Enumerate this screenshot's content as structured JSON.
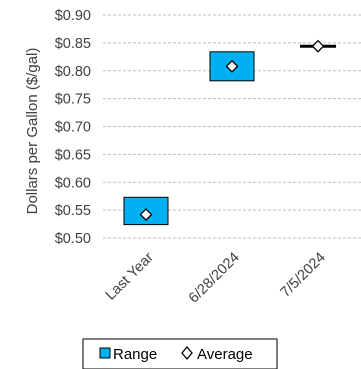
{
  "chart_data": {
    "type": "bar",
    "title": "",
    "xlabel": "",
    "ylabel": "Dollars per Gallon ($/gal)",
    "ylim": [
      0.5,
      0.9
    ],
    "ytick_step": 0.05,
    "yticks": [
      "$0.50",
      "$0.55",
      "$0.60",
      "$0.65",
      "$0.70",
      "$0.75",
      "$0.80",
      "$0.85",
      "$0.90"
    ],
    "grid": true,
    "legend_position": "bottom",
    "categories": [
      "Last Year",
      "6/28/2024",
      "7/5/2024"
    ],
    "series": [
      {
        "name": "Range",
        "kind": "floating-bar",
        "low": [
          0.524,
          0.782,
          0.843
        ],
        "high": [
          0.573,
          0.834,
          0.845
        ],
        "color": "#00B0F0"
      },
      {
        "name": "Average",
        "kind": "marker",
        "values": [
          0.542,
          0.808,
          0.844
        ],
        "color": "#000000"
      }
    ]
  },
  "legend": {
    "range_label": "Range",
    "average_label": "Average"
  }
}
